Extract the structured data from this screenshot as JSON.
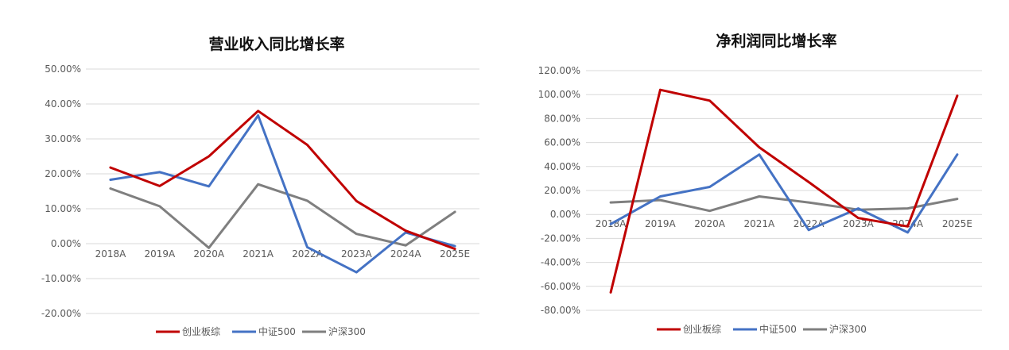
{
  "chart_data": [
    {
      "type": "line",
      "title": "营业收入同比增长率",
      "categories": [
        "2018A",
        "2019A",
        "2020A",
        "2021A",
        "2022A",
        "2023A",
        "2024A",
        "2025E"
      ],
      "ylim": [
        -0.2,
        0.5
      ],
      "yticks": [
        "50.00%",
        "40.00%",
        "30.00%",
        "20.00%",
        "10.00%",
        "0.00%",
        "-10.00%",
        "-20.00%"
      ],
      "grid": true,
      "legend": "bottom",
      "series": [
        {
          "name": "创业板综",
          "color": "#c00000",
          "values": [
            0.218,
            0.165,
            0.25,
            0.38,
            0.283,
            0.122,
            0.037,
            -0.015
          ]
        },
        {
          "name": "中证500",
          "color": "#4472c4",
          "values": [
            0.183,
            0.205,
            0.164,
            0.367,
            -0.01,
            -0.082,
            0.032,
            -0.007
          ]
        },
        {
          "name": "沪深300",
          "color": "#7f7f7f",
          "values": [
            0.158,
            0.107,
            -0.012,
            0.17,
            0.123,
            0.028,
            -0.005,
            0.091
          ]
        }
      ]
    },
    {
      "type": "line",
      "title": "净利润同比增长率",
      "categories": [
        "2018A",
        "2019A",
        "2020A",
        "2021A",
        "2022A",
        "2023A",
        "2024A",
        "2025E"
      ],
      "ylim": [
        -0.8,
        1.2
      ],
      "yticks": [
        "120.00%",
        "100.00%",
        "80.00%",
        "60.00%",
        "40.00%",
        "20.00%",
        "0.00%",
        "-20.00%",
        "-40.00%",
        "-60.00%",
        "-80.00%"
      ],
      "grid": true,
      "legend": "bottom",
      "series": [
        {
          "name": "创业板综",
          "color": "#c00000",
          "values": [
            -0.65,
            1.04,
            0.95,
            0.56,
            0.27,
            -0.03,
            -0.1,
            0.99
          ]
        },
        {
          "name": "中证500",
          "color": "#4472c4",
          "values": [
            -0.08,
            0.15,
            0.23,
            0.5,
            -0.13,
            0.05,
            -0.15,
            0.5
          ]
        },
        {
          "name": "沪深300",
          "color": "#7f7f7f",
          "values": [
            0.1,
            0.12,
            0.03,
            0.15,
            0.1,
            0.04,
            0.05,
            0.13
          ]
        }
      ]
    }
  ]
}
